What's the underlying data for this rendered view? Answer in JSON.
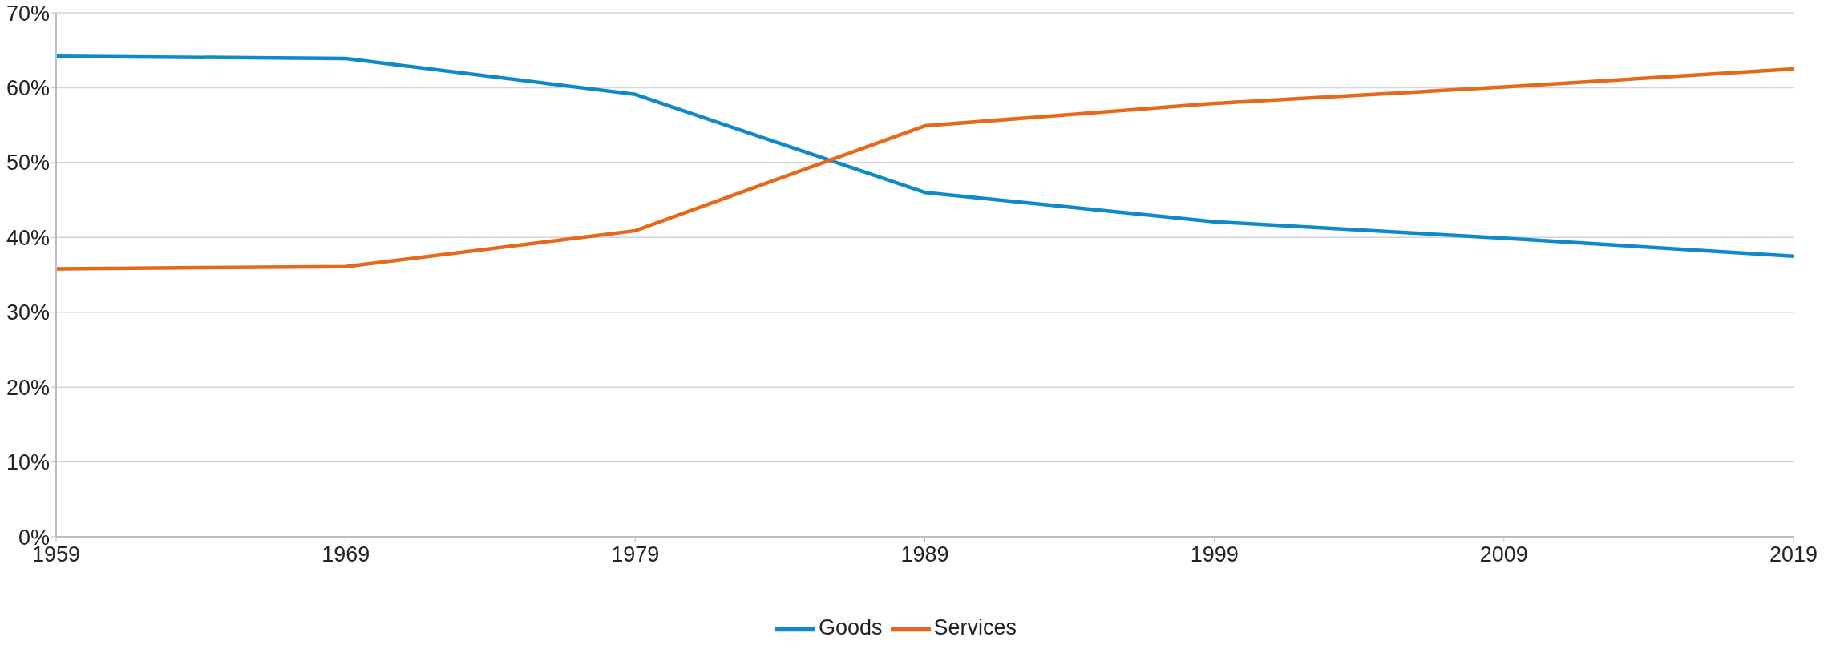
{
  "chart_data": {
    "type": "line",
    "x": [
      1959,
      1969,
      1979,
      1989,
      1999,
      2009,
      2019
    ],
    "series": [
      {
        "name": "Goods",
        "color": "#0e8ac8",
        "values": [
          64.2,
          63.9,
          59.1,
          46.0,
          42.1,
          39.9,
          37.5
        ]
      },
      {
        "name": "Services",
        "color": "#e8681a",
        "values": [
          35.8,
          36.1,
          40.9,
          54.9,
          57.9,
          60.1,
          62.5
        ]
      }
    ],
    "xlim": [
      1959,
      2019
    ],
    "xticks": [
      1959,
      1969,
      1979,
      1989,
      1999,
      2009,
      2019
    ],
    "ylim": [
      0,
      70
    ],
    "yticks": [
      {
        "value": 0,
        "label": "0%"
      },
      {
        "value": 10,
        "label": "10%"
      },
      {
        "value": 20,
        "label": "20%"
      },
      {
        "value": 30,
        "label": "30%"
      },
      {
        "value": 40,
        "label": "40%"
      },
      {
        "value": 50,
        "label": "50%"
      },
      {
        "value": 60,
        "label": "60%"
      },
      {
        "value": 70,
        "label": "70%"
      }
    ],
    "grid": "y",
    "legend": "bottom",
    "marker": "none",
    "line_style": "solid"
  }
}
